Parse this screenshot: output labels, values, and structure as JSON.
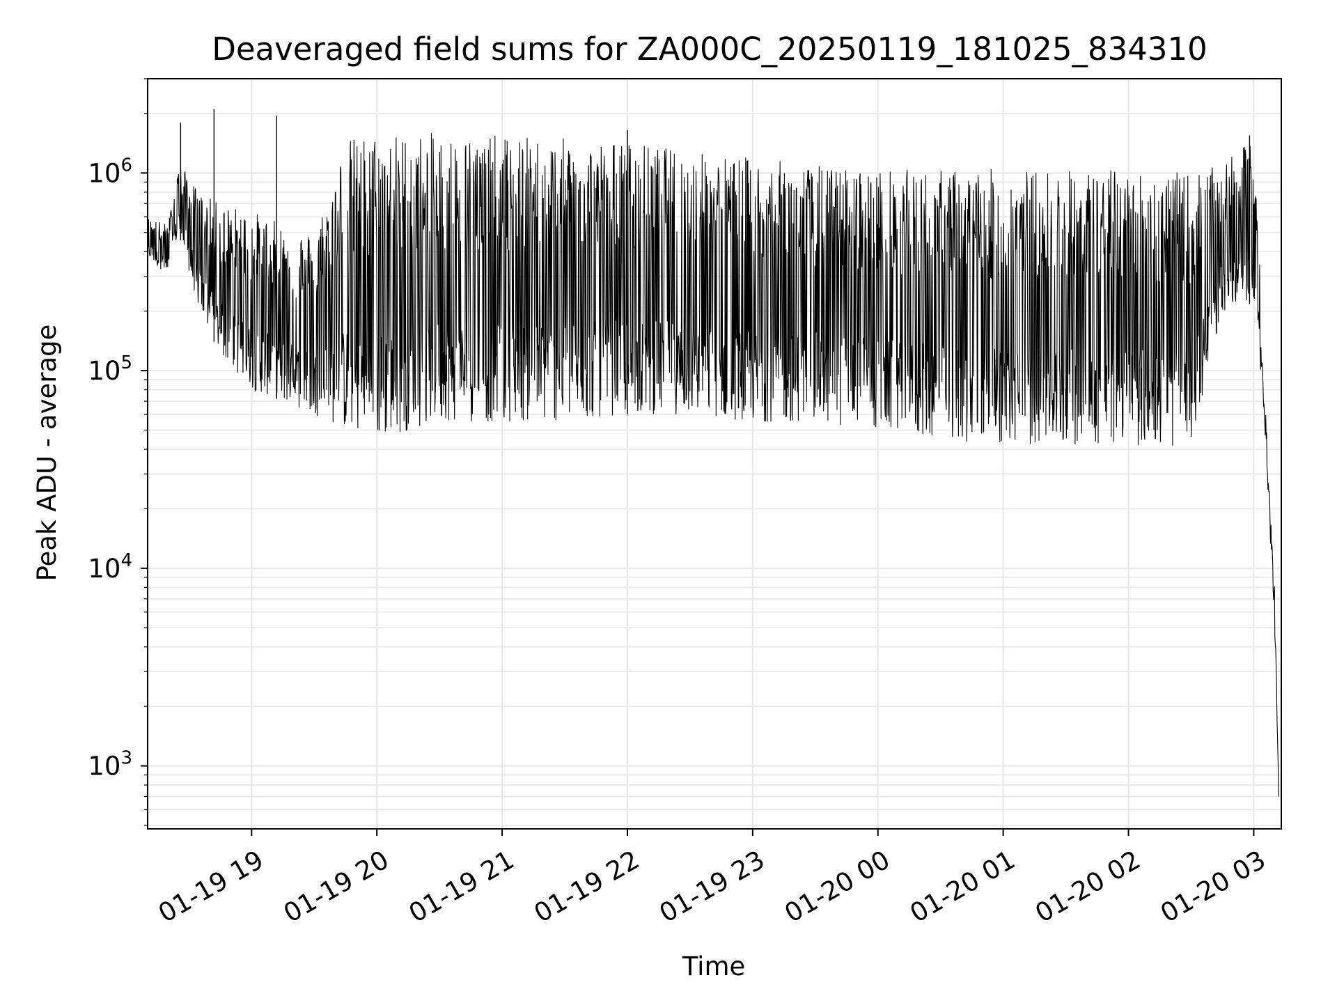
{
  "chart_data": {
    "type": "line",
    "title": "Deaveraged field sums for ZA000C_20250119_181025_834310",
    "xlabel": "Time",
    "ylabel": "Peak ADU - average",
    "yscale": "log",
    "ylim": [
      480,
      3000000
    ],
    "xlim_hours": [
      18.17,
      27.22
    ],
    "grid": true,
    "line_color": "#000000",
    "grid_color": "#e6e6e6",
    "x_ticks": [
      {
        "label": "01-19 19",
        "hour": 19
      },
      {
        "label": "01-19 20",
        "hour": 20
      },
      {
        "label": "01-19 21",
        "hour": 21
      },
      {
        "label": "01-19 22",
        "hour": 22
      },
      {
        "label": "01-19 23",
        "hour": 23
      },
      {
        "label": "01-20 00",
        "hour": 24
      },
      {
        "label": "01-20 01",
        "hour": 25
      },
      {
        "label": "01-20 02",
        "hour": 26
      },
      {
        "label": "01-20 03",
        "hour": 27
      }
    ],
    "y_ticks": [
      {
        "base": "10",
        "exp": "3",
        "value": 1000
      },
      {
        "base": "10",
        "exp": "4",
        "value": 10000
      },
      {
        "base": "10",
        "exp": "5",
        "value": 100000
      },
      {
        "base": "10",
        "exp": "6",
        "value": 1000000
      }
    ],
    "series": [
      {
        "envelope": [
          {
            "time": "18:10",
            "high": 600000,
            "low": 380000
          },
          {
            "time": "18:20",
            "high": 550000,
            "low": 300000
          },
          {
            "time": "18:25",
            "high": 1150000,
            "low": 500000
          },
          {
            "time": "18:35",
            "high": 800000,
            "low": 200000
          },
          {
            "time": "18:45",
            "high": 700000,
            "low": 120000
          },
          {
            "time": "19:00",
            "high": 650000,
            "low": 80000
          },
          {
            "time": "19:15",
            "high": 550000,
            "low": 70000
          },
          {
            "time": "19:30",
            "high": 500000,
            "low": 60000
          },
          {
            "time": "19:45",
            "high": 1500000,
            "low": 50000
          },
          {
            "time": "20:00",
            "high": 1600000,
            "low": 45000
          },
          {
            "time": "20:30",
            "high": 1600000,
            "low": 55000
          },
          {
            "time": "21:00",
            "high": 1550000,
            "low": 55000
          },
          {
            "time": "21:30",
            "high": 1500000,
            "low": 55000
          },
          {
            "time": "22:00",
            "high": 1450000,
            "low": 60000
          },
          {
            "time": "22:30",
            "high": 1300000,
            "low": 60000
          },
          {
            "time": "23:00",
            "high": 1200000,
            "low": 55000
          },
          {
            "time": "23:30",
            "high": 1100000,
            "low": 55000
          },
          {
            "time": "00:00",
            "high": 1050000,
            "low": 50000
          },
          {
            "time": "00:30",
            "high": 1050000,
            "low": 45000
          },
          {
            "time": "01:00",
            "high": 1050000,
            "low": 42000
          },
          {
            "time": "01:30",
            "high": 1050000,
            "low": 42000
          },
          {
            "time": "02:00",
            "high": 1050000,
            "low": 42000
          },
          {
            "time": "02:30",
            "high": 1000000,
            "low": 40000
          },
          {
            "time": "02:45",
            "high": 1100000,
            "low": 200000
          },
          {
            "time": "03:00",
            "high": 1500000,
            "low": 220000
          },
          {
            "time": "03:05",
            "high": 200000,
            "low": 60000
          },
          {
            "time": "03:10",
            "high": 22000,
            "low": 5000
          },
          {
            "time": "03:12",
            "high": 700,
            "low": 700
          }
        ],
        "spikes": [
          {
            "time": "18:42",
            "value": 2100000
          },
          {
            "time": "19:12",
            "value": 1950000
          },
          {
            "time": "18:26",
            "value": 1800000
          },
          {
            "time": "22:00",
            "value": 1650000
          },
          {
            "time": "02:58",
            "value": 1550000
          }
        ]
      }
    ]
  }
}
